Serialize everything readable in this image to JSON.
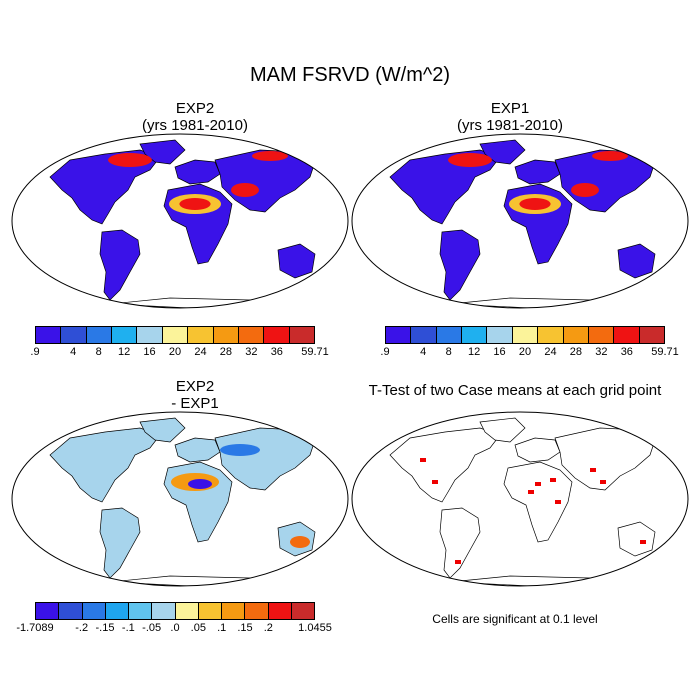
{
  "title": "MAM FSRVD (W/m^2)",
  "panels": {
    "exp2": {
      "title_line1": "EXP2",
      "title_line2": "(yrs 1981-2010)"
    },
    "exp1": {
      "title_line1": "EXP1",
      "title_line2": "(yrs 1981-2010)"
    },
    "diff": {
      "title_line1": "EXP2",
      "title_line2": "- EXP1"
    },
    "ttest": {
      "title_line1": "T-Test of two Case means at each grid point",
      "note": "Cells are significant at 0.1 level"
    }
  },
  "colorbar_main": {
    "colors": [
      "#3a12e8",
      "#2f4fd6",
      "#2a79e6",
      "#1fb0ef",
      "#a7d4ec",
      "#fbf39a",
      "#f7c331",
      "#f59a12",
      "#f36b0f",
      "#ef1313",
      "#c92b2b"
    ],
    "ticks": [
      ".9",
      "4",
      "8",
      "12",
      "16",
      "20",
      "24",
      "28",
      "32",
      "36",
      "59.71"
    ]
  },
  "colorbar_diff": {
    "colors": [
      "#3a12e8",
      "#2f4fd6",
      "#2a79e6",
      "#1fa5ef",
      "#60c4ee",
      "#a7d4ec",
      "#fbf39a",
      "#f7c331",
      "#f59a12",
      "#f36b0f",
      "#ef1313",
      "#c92b2b"
    ],
    "ticks": [
      "-1.7089",
      "-.2",
      "-.15",
      "-.1",
      "-.05",
      ".0",
      ".05",
      ".1",
      ".15",
      ".2",
      "1.0455"
    ]
  },
  "colors": {
    "land_blue": "#3a12e8",
    "land_light": "#a7d4ec",
    "sig": "#ee0000",
    "hot": "#ef1313",
    "warm": "#f7c331"
  }
}
